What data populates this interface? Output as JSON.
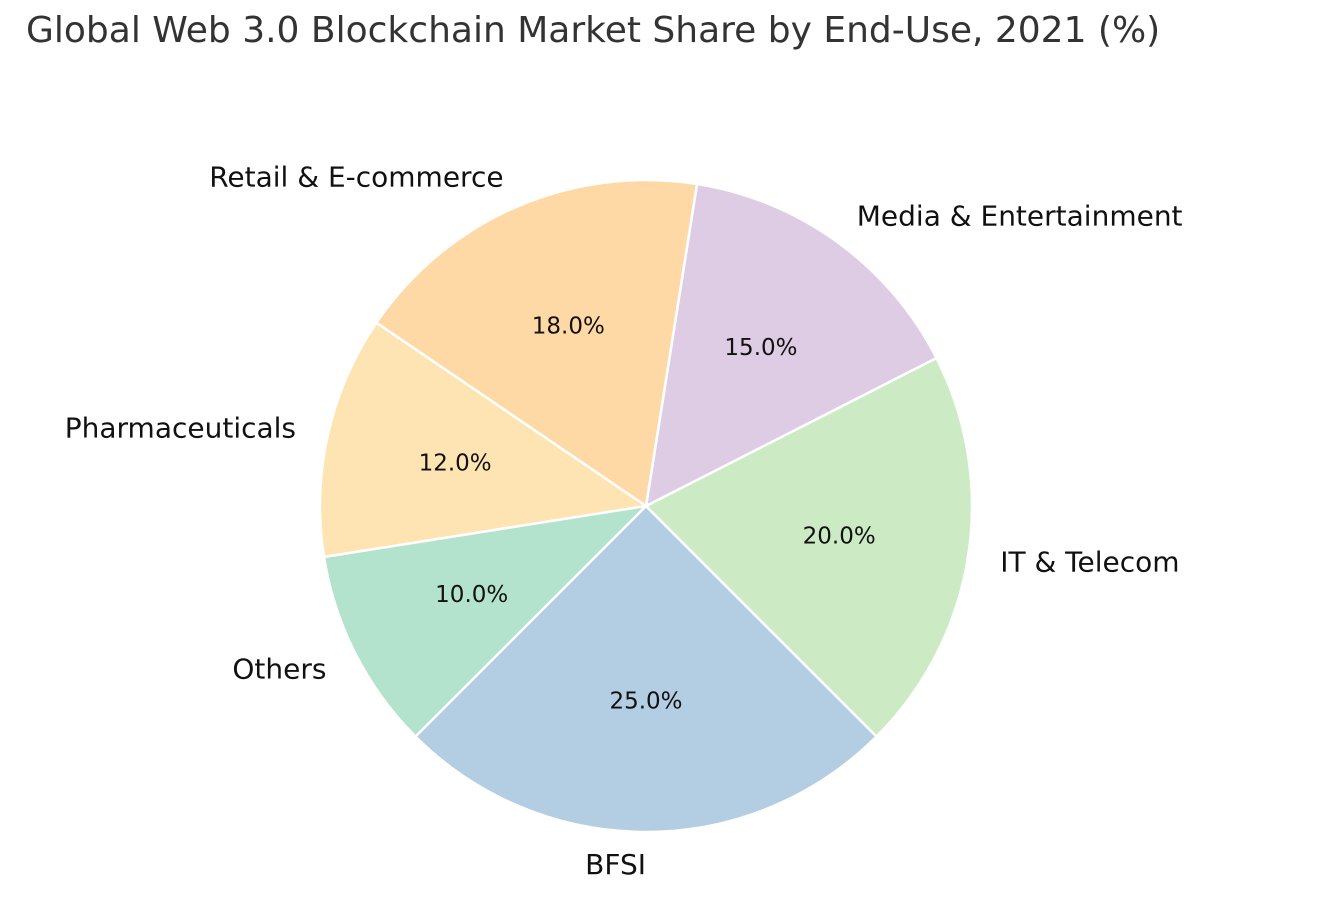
{
  "chart_data": {
    "type": "pie",
    "title": "Global Web 3.0 Blockchain Market Share by End-Use, 2021 (%)",
    "start_angle_deg": 225,
    "direction": "counterclockwise",
    "slices": [
      {
        "label": "BFSI",
        "value": 25.0,
        "pct_label": "25.0%",
        "color": "#b3cde3"
      },
      {
        "label": "IT & Telecom",
        "value": 20.0,
        "pct_label": "20.0%",
        "color": "#ccebc5"
      },
      {
        "label": "Media & Entertainment",
        "value": 15.0,
        "pct_label": "15.0%",
        "color": "#decbe4"
      },
      {
        "label": "Retail & E-commerce",
        "value": 18.0,
        "pct_label": "18.0%",
        "color": "#fed9a6"
      },
      {
        "label": "Pharmaceuticals",
        "value": 12.0,
        "pct_label": "12.0%",
        "color": "#fee4b3"
      },
      {
        "label": "Others",
        "value": 10.0,
        "pct_label": "10.0%",
        "color": "#b3e2cd"
      }
    ],
    "edge_color": "#ffffff",
    "legend": "none"
  }
}
